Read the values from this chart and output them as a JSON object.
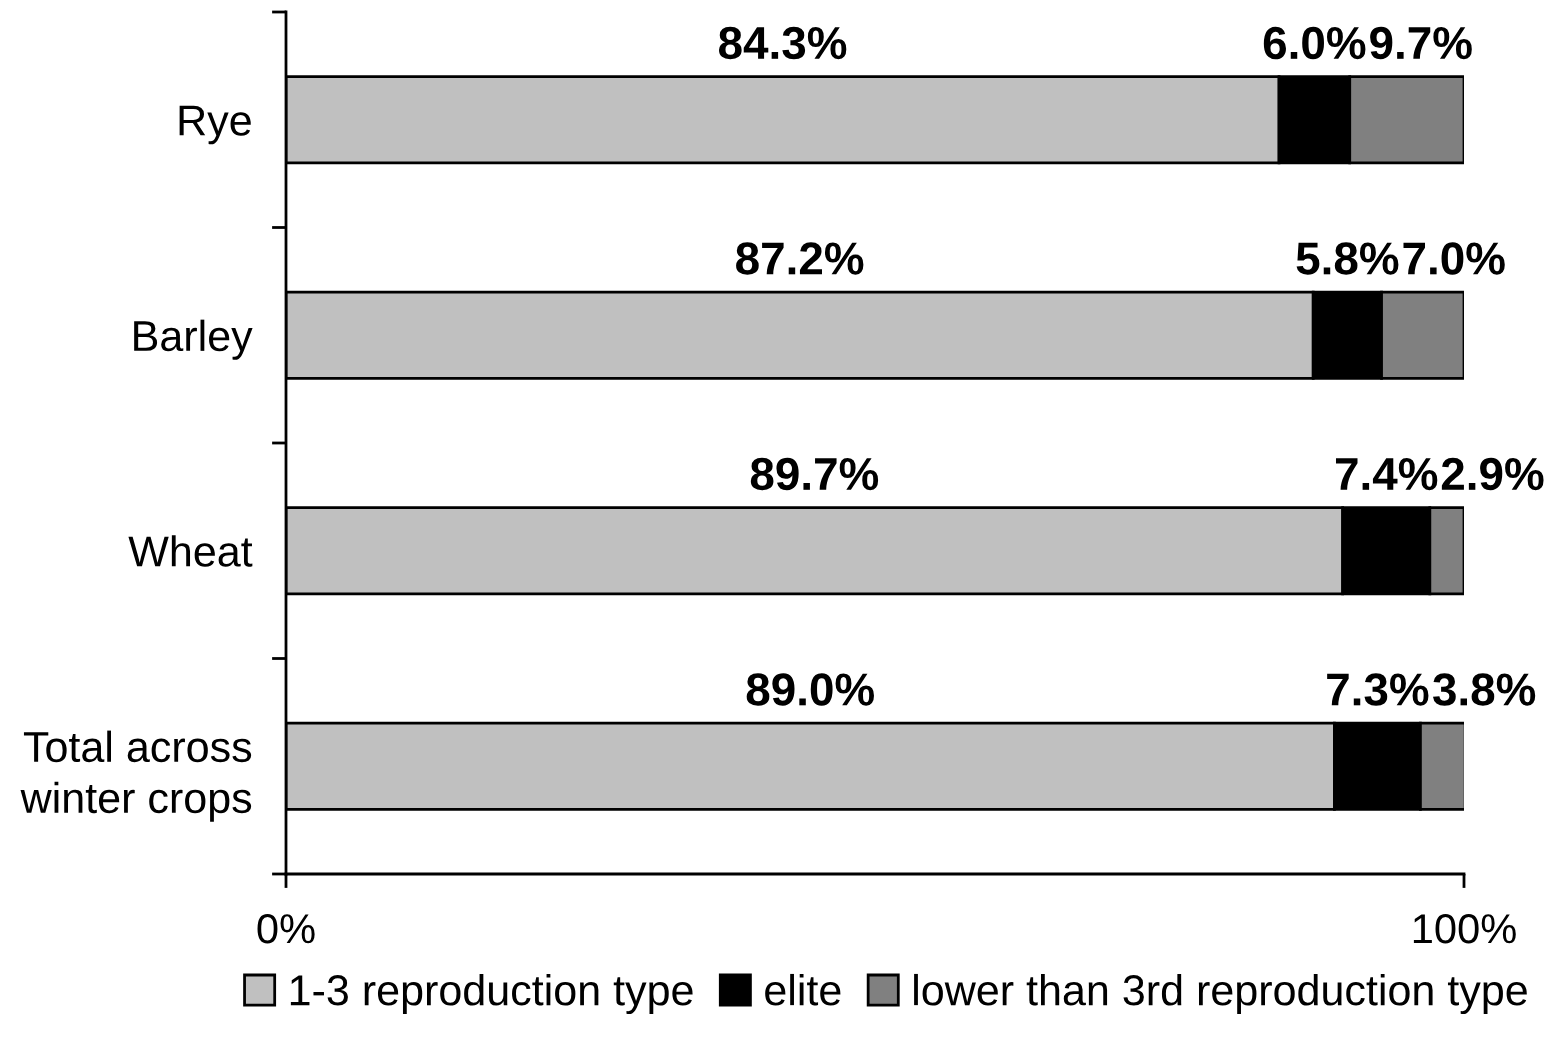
{
  "chart_data": {
    "type": "bar",
    "orientation": "horizontal",
    "stacked": true,
    "categories": [
      "Rye",
      "Barley",
      "Wheat",
      "Total across\nwinter crops"
    ],
    "xlim": [
      0,
      100
    ],
    "xticks": [
      {
        "value": 0,
        "label": "0%"
      },
      {
        "value": 100,
        "label": "100%"
      }
    ],
    "series": [
      {
        "name": "1-3 reproduction type",
        "color": "#c0c0c0",
        "values": [
          84.3,
          87.2,
          89.7,
          89.0
        ],
        "value_labels": [
          "84.3%",
          "87.2%",
          "89.7%",
          "89.0%"
        ]
      },
      {
        "name": "elite",
        "color": "#000000",
        "values": [
          6.0,
          5.8,
          7.4,
          7.3
        ],
        "value_labels": [
          "6.0%",
          "5.8%",
          "7.4%",
          "7.3%"
        ]
      },
      {
        "name": "lower than 3rd reproduction type",
        "color": "#808080",
        "values": [
          9.7,
          7.0,
          2.9,
          3.8
        ],
        "value_labels": [
          "9.7%",
          "7.0%",
          "2.9%",
          "3.8%"
        ]
      }
    ],
    "legend": "bottom"
  }
}
